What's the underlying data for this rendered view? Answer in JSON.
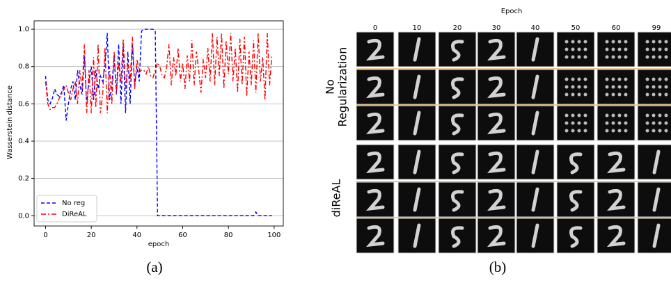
{
  "chart_data": {
    "type": "line",
    "x_label": "epoch",
    "y_label": "Wasserstein distance",
    "x": [
      0,
      1,
      2,
      3,
      4,
      5,
      6,
      7,
      8,
      9,
      10,
      11,
      12,
      13,
      14,
      15,
      16,
      17,
      18,
      19,
      20,
      21,
      22,
      23,
      24,
      25,
      26,
      27,
      28,
      29,
      30,
      31,
      32,
      33,
      34,
      35,
      36,
      37,
      38,
      39,
      40,
      41,
      42,
      43,
      44,
      45,
      46,
      47,
      48,
      49,
      50,
      51,
      52,
      53,
      54,
      55,
      56,
      57,
      58,
      59,
      60,
      61,
      62,
      63,
      64,
      65,
      66,
      67,
      68,
      69,
      70,
      71,
      72,
      73,
      74,
      75,
      76,
      77,
      78,
      79,
      80,
      81,
      82,
      83,
      84,
      85,
      86,
      87,
      88,
      89,
      90,
      91,
      92,
      93,
      94,
      95,
      96,
      97,
      98,
      99
    ],
    "series": [
      {
        "name": "No reg",
        "color": "#0000ff",
        "dash": "5,3",
        "values": [
          0.75,
          0.62,
          0.6,
          0.63,
          0.68,
          0.65,
          0.64,
          0.66,
          0.7,
          0.51,
          0.6,
          0.68,
          0.72,
          0.62,
          0.78,
          0.7,
          0.65,
          0.86,
          0.6,
          0.72,
          0.8,
          0.62,
          0.78,
          0.68,
          0.75,
          0.72,
          0.8,
          0.98,
          0.62,
          0.7,
          0.85,
          0.65,
          0.92,
          0.6,
          0.92,
          0.55,
          0.88,
          0.6,
          0.92,
          0.7,
          0.8,
          0.72,
          0.99,
          1.0,
          1.0,
          1.0,
          1.0,
          1.0,
          0.99,
          0.0,
          0,
          0,
          0,
          0,
          0,
          0,
          0,
          0,
          0,
          0,
          0,
          0,
          0,
          0,
          0,
          0,
          0,
          0,
          0,
          0,
          0,
          0,
          0,
          0,
          0,
          0,
          0,
          0,
          0,
          0,
          0,
          0,
          0,
          0,
          0,
          0,
          0,
          0,
          0,
          0,
          0,
          0,
          0.02,
          0,
          0,
          0,
          0,
          0,
          0,
          0
        ]
      },
      {
        "name": "DiReAL",
        "color": "#ff0000",
        "dash": "7,3,2,3",
        "values": [
          0.72,
          0.6,
          0.57,
          0.58,
          0.58,
          0.6,
          0.63,
          0.65,
          0.68,
          0.7,
          0.66,
          0.62,
          0.68,
          0.72,
          0.6,
          0.78,
          0.68,
          0.92,
          0.55,
          0.78,
          0.55,
          0.85,
          0.58,
          0.92,
          0.55,
          0.65,
          0.9,
          0.55,
          0.8,
          0.6,
          0.88,
          0.66,
          0.82,
          0.72,
          0.95,
          0.68,
          0.82,
          0.72,
          0.96,
          0.68,
          0.84,
          0.77,
          0.78,
          0.78,
          0.76,
          0.8,
          0.75,
          0.74,
          0.78,
          0.82,
          0.8,
          0.75,
          0.74,
          0.8,
          0.92,
          0.7,
          0.85,
          0.75,
          0.9,
          0.72,
          0.82,
          0.68,
          0.86,
          0.72,
          0.94,
          0.7,
          0.88,
          0.78,
          0.66,
          0.84,
          0.74,
          0.9,
          0.72,
          0.98,
          0.7,
          0.96,
          0.75,
          0.98,
          0.68,
          0.94,
          0.76,
          0.98,
          0.72,
          0.9,
          0.66,
          0.95,
          0.7,
          0.96,
          0.64,
          0.88,
          0.7,
          0.94,
          0.66,
          0.98,
          0.72,
          0.85,
          0.62,
          0.98,
          0.7,
          0.86
        ]
      }
    ],
    "xlim": [
      -5,
      104
    ],
    "xticks": [
      0,
      20,
      40,
      60,
      80,
      100
    ],
    "ylim": [
      -0.055,
      1.045
    ],
    "yticks": [
      {
        "value": 0,
        "label": "0.0"
      },
      0.2,
      0.4,
      0.6,
      0.8,
      {
        "value": 1,
        "label": "1.0"
      }
    ],
    "grid": true,
    "legend": "lower left"
  },
  "captions": [
    "(a)",
    "(b)"
  ],
  "panel_b": {
    "title": "Epoch",
    "columns": [
      "0",
      "10",
      "20",
      "30",
      "40",
      "50",
      "60",
      "99"
    ],
    "row_groups": [
      [
        "No",
        "Regularization"
      ],
      [
        "diReAL"
      ]
    ]
  }
}
